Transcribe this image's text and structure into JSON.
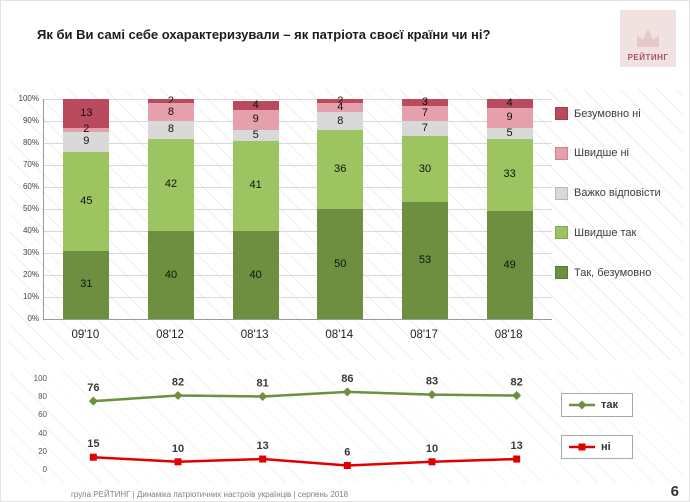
{
  "header": {
    "title": "Як  би Ви самі себе охарактеризували – як патріота своєї країни чи ні?",
    "logo_text": "РЕЙТИНГ"
  },
  "colors": {
    "dark_green": "#6d8f3f",
    "light_green": "#9cc460",
    "gray": "#d9d9d9",
    "pink": "#e5a0ab",
    "dark_red": "#ba4a5e",
    "line_green": "#6d8f3f",
    "line_red": "#e00000"
  },
  "chart_data": [
    {
      "type": "bar",
      "stacked": true,
      "categories": [
        "09'10",
        "08'12",
        "08'13",
        "08'14",
        "08'17",
        "08'18"
      ],
      "series": [
        {
          "name": "Так, безумовно",
          "color": "#6d8f3f",
          "values": [
            31,
            40,
            40,
            50,
            53,
            49
          ]
        },
        {
          "name": "Швидше так",
          "color": "#9cc460",
          "values": [
            45,
            42,
            41,
            36,
            30,
            33
          ]
        },
        {
          "name": "Важко відповісти",
          "color": "#d9d9d9",
          "values": [
            9,
            8,
            5,
            8,
            7,
            5
          ]
        },
        {
          "name": "Швидше ні",
          "color": "#e5a0ab",
          "values": [
            2,
            8,
            9,
            4,
            7,
            9
          ]
        },
        {
          "name": "Безумовно ні",
          "color": "#ba4a5e",
          "values": [
            13,
            2,
            4,
            2,
            3,
            4
          ]
        }
      ],
      "y_ticks": [
        "100%",
        "90%",
        "80%",
        "70%",
        "60%",
        "50%",
        "40%",
        "30%",
        "20%",
        "10%",
        "0%"
      ],
      "ylim": [
        0,
        100
      ],
      "legend_position": "right",
      "grid": true
    },
    {
      "type": "line",
      "categories": [
        "09'10",
        "08'12",
        "08'13",
        "08'14",
        "08'17",
        "08'18"
      ],
      "series": [
        {
          "name": "так",
          "color": "#6d8f3f",
          "marker": "diamond",
          "values": [
            76,
            82,
            81,
            86,
            83,
            82
          ]
        },
        {
          "name": "ні",
          "color": "#e00000",
          "marker": "square",
          "values": [
            15,
            10,
            13,
            6,
            10,
            13
          ]
        }
      ],
      "y_ticks": [
        "100",
        "80",
        "60",
        "40",
        "20",
        "0"
      ],
      "ylim": [
        0,
        100
      ],
      "legend_position": "right",
      "grid": false
    }
  ],
  "footer": {
    "source": "група РЕЙТИНГ | Динаміка патріотичних настроїв українців | серпень 2018",
    "page_number": "6"
  }
}
